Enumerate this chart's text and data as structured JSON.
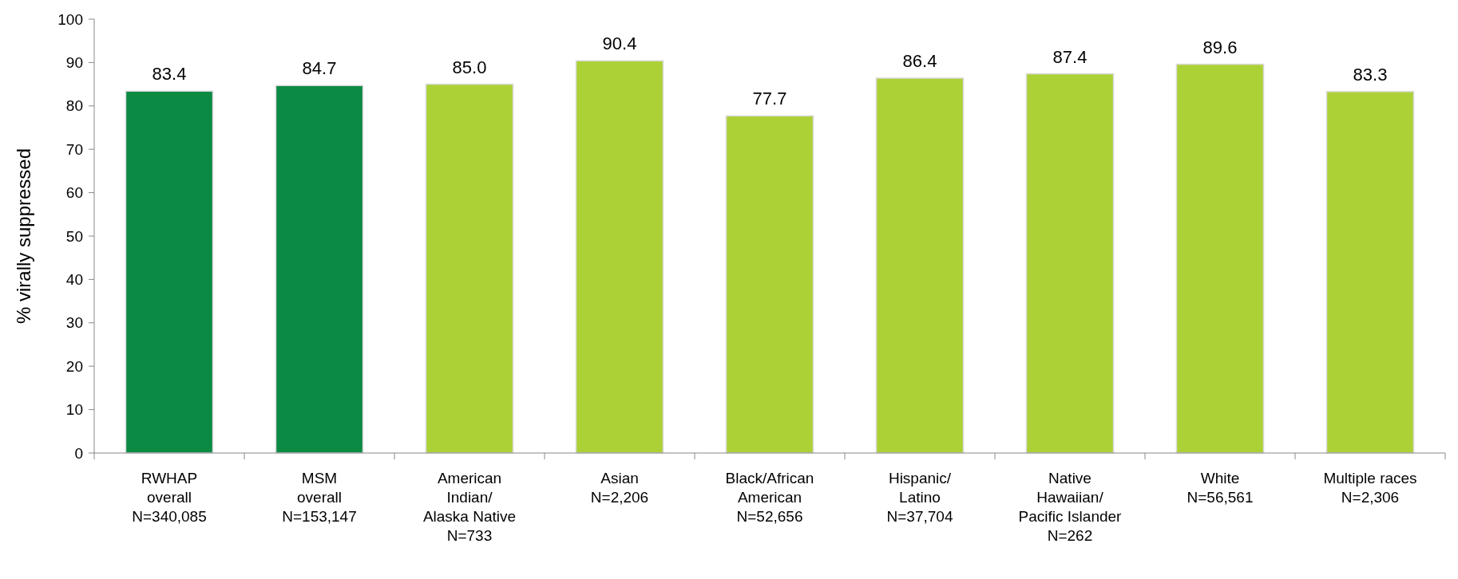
{
  "chart_data": {
    "type": "bar",
    "ylabel": "% virally suppressed",
    "categories": [
      "RWHAP\noverall\nN=340,085",
      "MSM\noverall\nN=153,147",
      "American\nIndian/\nAlaska Native\nN=733",
      "Asian\nN=2,206",
      "Black/African\nAmerican\nN=52,656",
      "Hispanic/\nLatino\nN=37,704",
      "Native\nHawaiian/\nPacific Islander\nN=262",
      "White\nN=56,561",
      "Multiple races\nN=2,306"
    ],
    "values": [
      83.4,
      84.7,
      85.0,
      90.4,
      77.7,
      86.4,
      87.4,
      89.6,
      83.3
    ],
    "value_labels": [
      "83.4",
      "84.7",
      "85.0",
      "90.4",
      "77.7",
      "86.4",
      "87.4",
      "89.6",
      "83.3"
    ],
    "colors": [
      "#0a8a43",
      "#0a8a43",
      "#acd136",
      "#acd136",
      "#acd136",
      "#acd136",
      "#acd136",
      "#acd136",
      "#acd136"
    ],
    "ylim": [
      0,
      100
    ],
    "yticks": [
      0,
      10,
      20,
      30,
      40,
      50,
      60,
      70,
      80,
      90,
      100
    ],
    "grid": false
  }
}
